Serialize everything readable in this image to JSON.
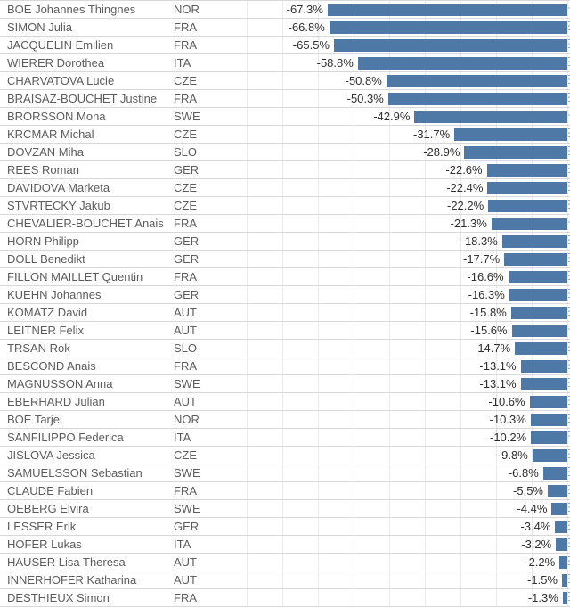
{
  "colors": {
    "bar": "#4e79a7",
    "row_border": "#d8d8d8",
    "gridline": "#e9e9e9",
    "name_text": "#5c5c5c",
    "value_text": "#2e2e2e",
    "background": "#ffffff"
  },
  "chart_data": {
    "type": "bar",
    "orientation": "horizontal",
    "value_unit": "percent",
    "title": "",
    "xlabel": "",
    "ylabel": "",
    "axis": {
      "min": -90,
      "max": 0,
      "gridline_step": 10,
      "zero_position": "right",
      "grid": true
    },
    "columns": [
      "athlete",
      "country",
      "value"
    ],
    "rows": [
      {
        "name": "BOE Johannes Thingnes",
        "country": "NOR",
        "value": -67.3,
        "label": "-67.3%"
      },
      {
        "name": "SIMON Julia",
        "country": "FRA",
        "value": -66.8,
        "label": "-66.8%"
      },
      {
        "name": "JACQUELIN Emilien",
        "country": "FRA",
        "value": -65.5,
        "label": "-65.5%"
      },
      {
        "name": "WIERER Dorothea",
        "country": "ITA",
        "value": -58.8,
        "label": "-58.8%"
      },
      {
        "name": "CHARVATOVA Lucie",
        "country": "CZE",
        "value": -50.8,
        "label": "-50.8%"
      },
      {
        "name": "BRAISAZ-BOUCHET Justine",
        "country": "FRA",
        "value": -50.3,
        "label": "-50.3%"
      },
      {
        "name": "BRORSSON Mona",
        "country": "SWE",
        "value": -42.9,
        "label": "-42.9%"
      },
      {
        "name": "KRCMAR Michal",
        "country": "CZE",
        "value": -31.7,
        "label": "-31.7%"
      },
      {
        "name": "DOVZAN Miha",
        "country": "SLO",
        "value": -28.9,
        "label": "-28.9%"
      },
      {
        "name": "REES Roman",
        "country": "GER",
        "value": -22.6,
        "label": "-22.6%"
      },
      {
        "name": "DAVIDOVA Marketa",
        "country": "CZE",
        "value": -22.4,
        "label": "-22.4%"
      },
      {
        "name": "STVRTECKY Jakub",
        "country": "CZE",
        "value": -22.2,
        "label": "-22.2%"
      },
      {
        "name": "CHEVALIER-BOUCHET Anais",
        "country": "FRA",
        "value": -21.3,
        "label": "-21.3%"
      },
      {
        "name": "HORN Philipp",
        "country": "GER",
        "value": -18.3,
        "label": "-18.3%"
      },
      {
        "name": "DOLL Benedikt",
        "country": "GER",
        "value": -17.7,
        "label": "-17.7%"
      },
      {
        "name": "FILLON MAILLET Quentin",
        "country": "FRA",
        "value": -16.6,
        "label": "-16.6%"
      },
      {
        "name": "KUEHN Johannes",
        "country": "GER",
        "value": -16.3,
        "label": "-16.3%"
      },
      {
        "name": "KOMATZ David",
        "country": "AUT",
        "value": -15.8,
        "label": "-15.8%"
      },
      {
        "name": "LEITNER Felix",
        "country": "AUT",
        "value": -15.6,
        "label": "-15.6%"
      },
      {
        "name": "TRSAN Rok",
        "country": "SLO",
        "value": -14.7,
        "label": "-14.7%"
      },
      {
        "name": "BESCOND Anais",
        "country": "FRA",
        "value": -13.1,
        "label": "-13.1%"
      },
      {
        "name": "MAGNUSSON Anna",
        "country": "SWE",
        "value": -13.1,
        "label": "-13.1%"
      },
      {
        "name": "EBERHARD Julian",
        "country": "AUT",
        "value": -10.6,
        "label": "-10.6%"
      },
      {
        "name": "BOE Tarjei",
        "country": "NOR",
        "value": -10.3,
        "label": "-10.3%"
      },
      {
        "name": "SANFILIPPO Federica",
        "country": "ITA",
        "value": -10.2,
        "label": "-10.2%"
      },
      {
        "name": "JISLOVA Jessica",
        "country": "CZE",
        "value": -9.8,
        "label": "-9.8%"
      },
      {
        "name": "SAMUELSSON Sebastian",
        "country": "SWE",
        "value": -6.8,
        "label": "-6.8%"
      },
      {
        "name": "CLAUDE Fabien",
        "country": "FRA",
        "value": -5.5,
        "label": "-5.5%"
      },
      {
        "name": "OEBERG Elvira",
        "country": "SWE",
        "value": -4.4,
        "label": "-4.4%"
      },
      {
        "name": "LESSER Erik",
        "country": "GER",
        "value": -3.4,
        "label": "-3.4%"
      },
      {
        "name": "HOFER Lukas",
        "country": "ITA",
        "value": -3.2,
        "label": "-3.2%"
      },
      {
        "name": "HAUSER Lisa Theresa",
        "country": "AUT",
        "value": -2.2,
        "label": "-2.2%"
      },
      {
        "name": "INNERHOFER Katharina",
        "country": "AUT",
        "value": -1.5,
        "label": "-1.5%"
      },
      {
        "name": "DESTHIEUX Simon",
        "country": "FRA",
        "value": -1.3,
        "label": "-1.3%"
      }
    ]
  }
}
